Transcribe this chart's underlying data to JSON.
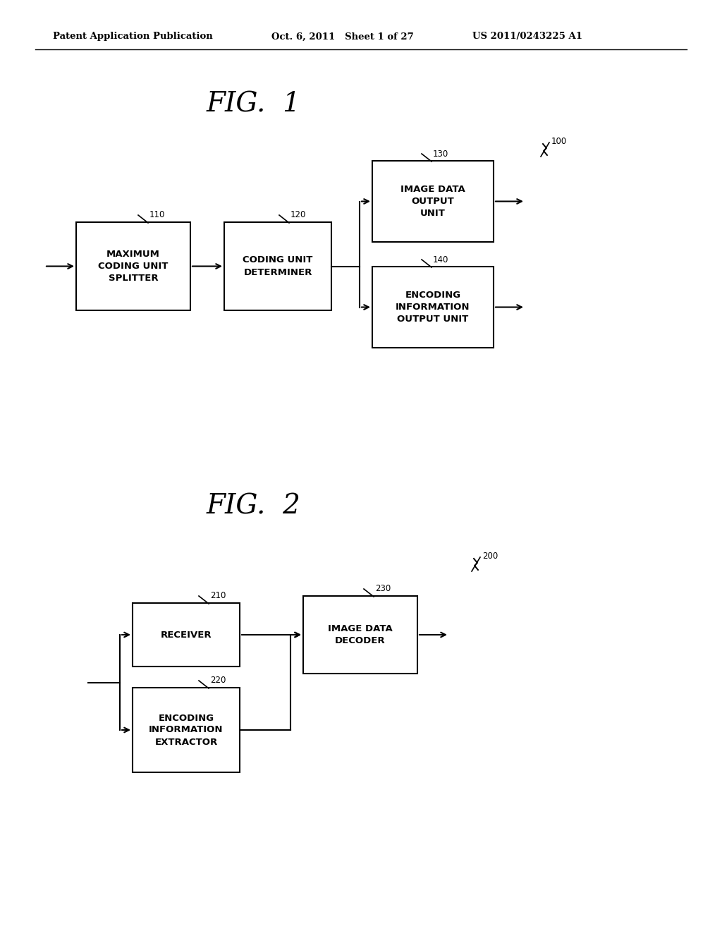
{
  "bg_color": "#ffffff",
  "header_left": "Patent Application Publication",
  "header_mid": "Oct. 6, 2011   Sheet 1 of 27",
  "header_right": "US 2011/0243225 A1",
  "fig1_title": "FIG.  1",
  "fig2_title": "FIG.  2",
  "fig1": {
    "label_100": "100",
    "label_110": "110",
    "label_120": "120",
    "label_130": "130",
    "label_140": "140",
    "box_110_text": "MAXIMUM\nCODING UNIT\nSPLITTER",
    "box_120_text": "CODING UNIT\nDETERMINER",
    "box_130_text": "IMAGE DATA\nOUTPUT\nUNIT",
    "box_140_text": "ENCODING\nINFORMATION\nOUTPUT UNIT"
  },
  "fig2": {
    "label_200": "200",
    "label_210": "210",
    "label_220": "220",
    "label_230": "230",
    "box_210_text": "RECEIVER",
    "box_220_text": "ENCODING\nINFORMATION\nEXTRACTOR",
    "box_230_text": "IMAGE DATA\nDECODER"
  }
}
